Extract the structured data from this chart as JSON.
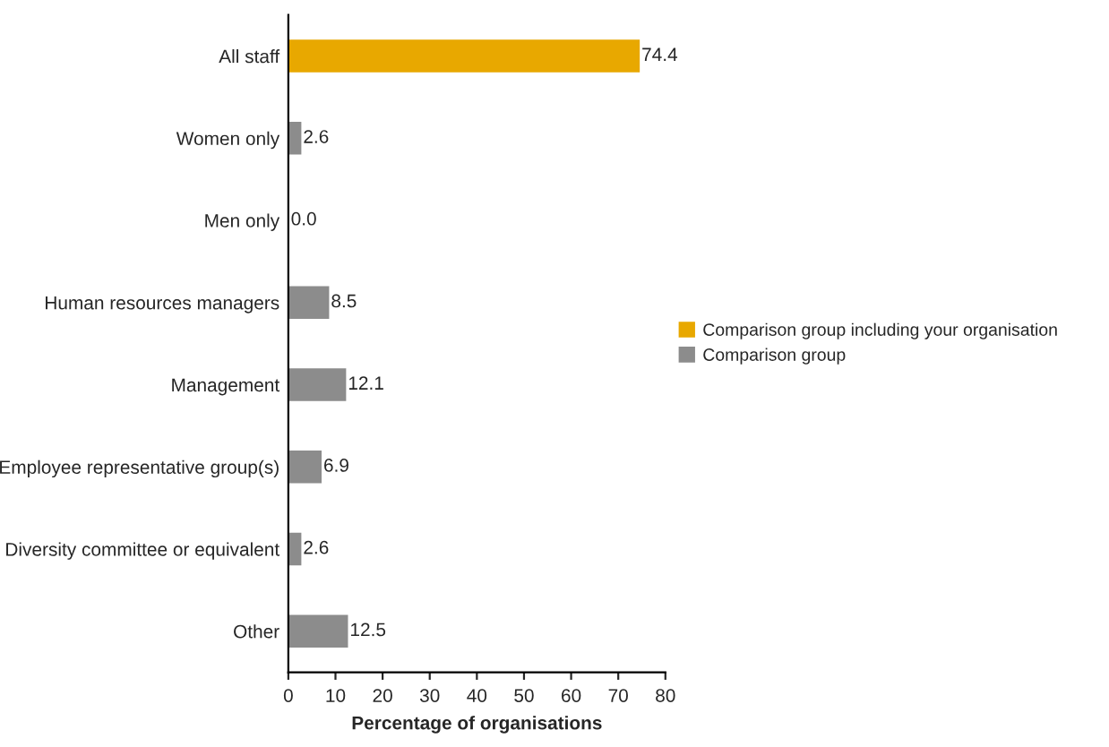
{
  "chart_data": {
    "type": "bar",
    "orientation": "horizontal",
    "xlabel": "Percentage of organisations",
    "categories": [
      "All staff",
      "Women only",
      "Men only",
      "Human resources managers",
      "Management",
      "Employee representative group(s)",
      "Diversity committee or equivalent",
      "Other"
    ],
    "series": [
      {
        "name": "Comparison group including your organisation",
        "color": "#e8a800",
        "values": [
          74.4,
          null,
          null,
          null,
          null,
          null,
          null,
          null
        ],
        "value_labels": [
          "74.4",
          null,
          null,
          null,
          null,
          null,
          null,
          null
        ]
      },
      {
        "name": "Comparison group",
        "color": "#8c8c8c",
        "values": [
          null,
          2.6,
          0.0,
          8.5,
          12.1,
          6.9,
          2.6,
          12.5
        ],
        "value_labels": [
          null,
          "2.6",
          "0.0",
          "8.5",
          "12.1",
          "6.9",
          "2.6",
          "12.5"
        ]
      }
    ],
    "xlim": [
      0,
      80
    ],
    "xticks": [
      0,
      10,
      20,
      30,
      40,
      50,
      60,
      70,
      80
    ],
    "legend": "right",
    "grid": false
  }
}
